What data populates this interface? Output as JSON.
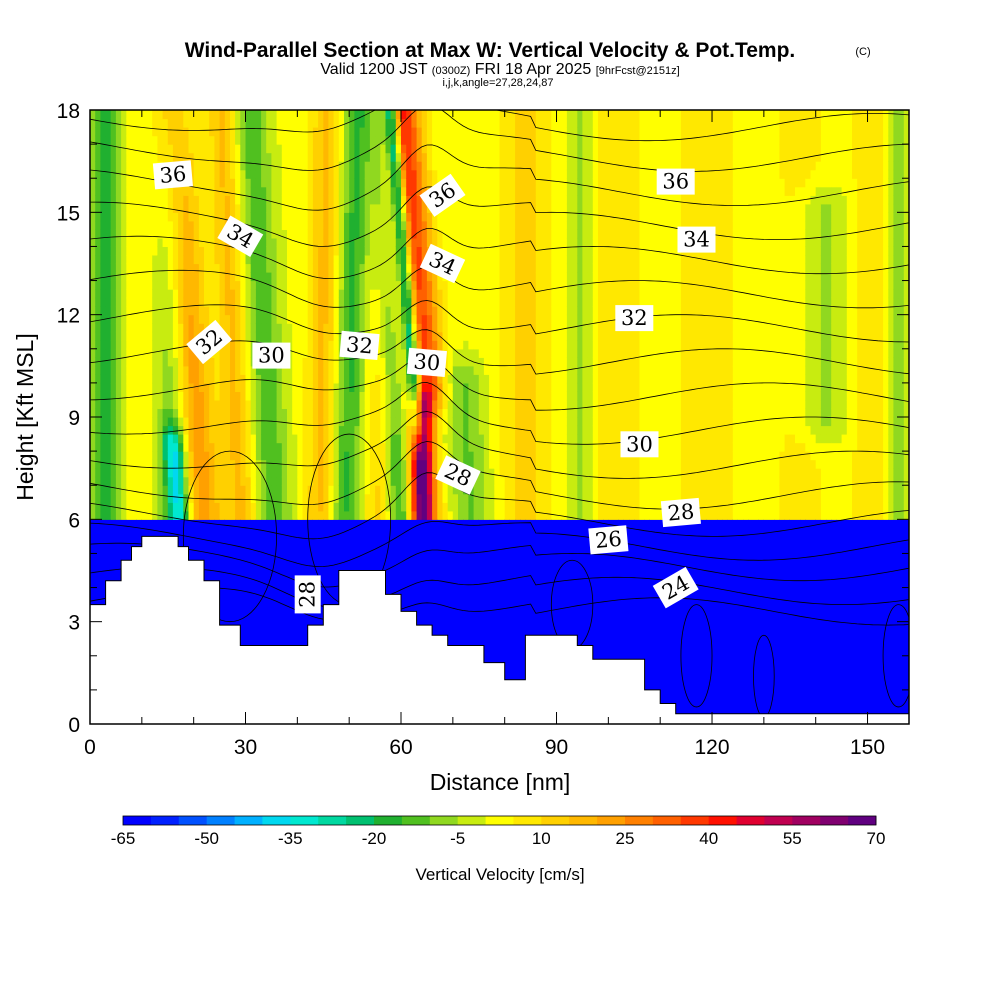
{
  "title": {
    "main": "Wind-Parallel Section at Max W: Vertical Velocity & Pot.Temp.",
    "copyright": "(C)",
    "valid_prefix": "Valid 1200 JST",
    "valid_zulu": "(0300Z)",
    "valid_date": "FRI 18 Apr 2025",
    "forecast": "[9hrFcst@2151z]",
    "indices": "i,j,k,angle=27,28,24,87"
  },
  "chart_data": {
    "type": "heatmap",
    "xlabel": "Distance [nm]",
    "ylabel": "Height [Kft MSL]",
    "xlim": [
      0,
      158
    ],
    "ylim": [
      0,
      18
    ],
    "x_ticks": [
      0,
      30,
      60,
      90,
      120,
      150
    ],
    "y_ticks": [
      0,
      3,
      6,
      9,
      12,
      15,
      18
    ],
    "colorbar": {
      "title": "Vertical Velocity [cm/s]",
      "levels": [
        -65,
        -60,
        -55,
        -50,
        -45,
        -40,
        -35,
        -30,
        -25,
        -20,
        -15,
        -10,
        -5,
        0,
        5,
        10,
        15,
        20,
        25,
        30,
        35,
        40,
        45,
        50,
        55,
        60,
        65,
        70
      ],
      "tick_labels": [
        "-65",
        "-50",
        "-35",
        "-20",
        "-5",
        "10",
        "25",
        "40",
        "55",
        "70"
      ],
      "colors": [
        "#0000ff",
        "#0020ff",
        "#0050ff",
        "#0080ff",
        "#00b0ff",
        "#00d8f0",
        "#00e8d0",
        "#00d8a0",
        "#00c070",
        "#20b030",
        "#50c020",
        "#90d820",
        "#c8ec10",
        "#ffff00",
        "#ffe800",
        "#ffd000",
        "#ffb800",
        "#ffa000",
        "#ff8000",
        "#ff6000",
        "#ff3800",
        "#ff1000",
        "#e00030",
        "#c00050",
        "#a00060",
        "#800070",
        "#600080"
      ]
    },
    "terrain_kft": [
      [
        0,
        3.5
      ],
      [
        3,
        3.5
      ],
      [
        3,
        4.2
      ],
      [
        6,
        4.2
      ],
      [
        6,
        4.8
      ],
      [
        8,
        4.8
      ],
      [
        8,
        5.2
      ],
      [
        10,
        5.2
      ],
      [
        10,
        5.5
      ],
      [
        17,
        5.5
      ],
      [
        17,
        5.2
      ],
      [
        19,
        5.2
      ],
      [
        19,
        4.8
      ],
      [
        22,
        4.8
      ],
      [
        22,
        4.2
      ],
      [
        25,
        4.2
      ],
      [
        25,
        2.9
      ],
      [
        29,
        2.9
      ],
      [
        29,
        2.3
      ],
      [
        42,
        2.3
      ],
      [
        42,
        2.9
      ],
      [
        45,
        2.9
      ],
      [
        45,
        3.5
      ],
      [
        48,
        3.5
      ],
      [
        48,
        4.5
      ],
      [
        57,
        4.5
      ],
      [
        57,
        3.8
      ],
      [
        60,
        3.8
      ],
      [
        60,
        3.3
      ],
      [
        63,
        3.3
      ],
      [
        63,
        2.9
      ],
      [
        66,
        2.9
      ],
      [
        66,
        2.6
      ],
      [
        69,
        2.6
      ],
      [
        69,
        2.3
      ],
      [
        76,
        2.3
      ],
      [
        76,
        1.8
      ],
      [
        80,
        1.8
      ],
      [
        80,
        1.3
      ],
      [
        84,
        1.3
      ],
      [
        84,
        2.6
      ],
      [
        94,
        2.6
      ],
      [
        94,
        2.3
      ],
      [
        97,
        2.3
      ],
      [
        97,
        1.9
      ],
      [
        107,
        1.9
      ],
      [
        107,
        1.0
      ],
      [
        110,
        1.0
      ],
      [
        110,
        0.6
      ],
      [
        113,
        0.6
      ],
      [
        113,
        0.3
      ],
      [
        158,
        0.3
      ]
    ],
    "contour_labels": [
      {
        "text": "36",
        "x": 16,
        "y": 16.1,
        "angle": -5
      },
      {
        "text": "34",
        "x": 29,
        "y": 14.3,
        "angle": 30
      },
      {
        "text": "32",
        "x": 23,
        "y": 11.2,
        "angle": -40
      },
      {
        "text": "30",
        "x": 35,
        "y": 10.8,
        "angle": 0
      },
      {
        "text": "32",
        "x": 52,
        "y": 11.1,
        "angle": 5
      },
      {
        "text": "36",
        "x": 68,
        "y": 15.5,
        "angle": -35
      },
      {
        "text": "34",
        "x": 68,
        "y": 13.5,
        "angle": 25
      },
      {
        "text": "30",
        "x": 65,
        "y": 10.6,
        "angle": 5
      },
      {
        "text": "28",
        "x": 71,
        "y": 7.3,
        "angle": 25
      },
      {
        "text": "36",
        "x": 113,
        "y": 15.9,
        "angle": 0
      },
      {
        "text": "34",
        "x": 117,
        "y": 14.2,
        "angle": 0
      },
      {
        "text": "32",
        "x": 105,
        "y": 11.9,
        "angle": 0
      },
      {
        "text": "30",
        "x": 106,
        "y": 8.2,
        "angle": 0
      },
      {
        "text": "28",
        "x": 114,
        "y": 6.2,
        "angle": -5
      },
      {
        "text": "26",
        "x": 100,
        "y": 5.4,
        "angle": -5
      },
      {
        "text": "24",
        "x": 113,
        "y": 4.0,
        "angle": -30
      },
      {
        "text": "28",
        "x": 42,
        "y": 3.8,
        "angle": -90
      }
    ]
  }
}
